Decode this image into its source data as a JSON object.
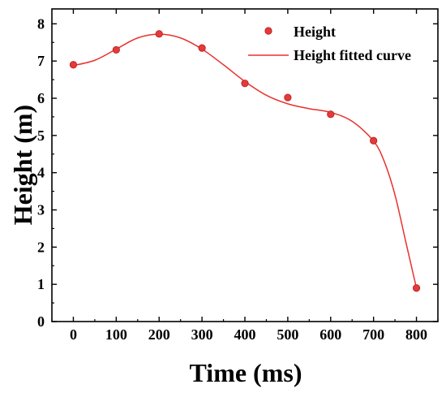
{
  "chart_data": {
    "type": "scatter",
    "xlabel": "Time (ms)",
    "ylabel": "Height (m)",
    "xlim": [
      -50,
      850
    ],
    "ylim": [
      0,
      8.4
    ],
    "xticks": [
      0,
      100,
      200,
      300,
      400,
      500,
      600,
      700,
      800
    ],
    "yticks": [
      0,
      1,
      2,
      3,
      4,
      5,
      6,
      7,
      8
    ],
    "xticklabels": [
      "0",
      "100",
      "200",
      "300",
      "400",
      "500",
      "600",
      "700",
      "800"
    ],
    "yticklabels": [
      "0",
      "1",
      "2",
      "3",
      "4",
      "5",
      "6",
      "7",
      "8"
    ],
    "grid": false,
    "legend_position": "top-right",
    "colors": {
      "series": "#e8322e",
      "point_fill": "#e23b3b",
      "axis": "#000000"
    },
    "series": [
      {
        "name": "Height",
        "kind": "scatter",
        "x": [
          0,
          100,
          200,
          300,
          400,
          500,
          600,
          700,
          800
        ],
        "y": [
          6.9,
          7.3,
          7.73,
          7.35,
          6.4,
          6.02,
          5.57,
          4.86,
          0.9
        ]
      },
      {
        "name": "Height fitted curve",
        "kind": "line",
        "x": [
          0,
          50,
          100,
          150,
          200,
          250,
          300,
          350,
          400,
          450,
          500,
          550,
          600,
          650,
          700,
          725,
          750,
          775,
          800
        ],
        "y": [
          6.88,
          7.02,
          7.32,
          7.62,
          7.72,
          7.62,
          7.32,
          6.9,
          6.45,
          6.08,
          5.85,
          5.72,
          5.62,
          5.38,
          4.85,
          4.3,
          3.4,
          2.15,
          0.9
        ]
      }
    ]
  }
}
